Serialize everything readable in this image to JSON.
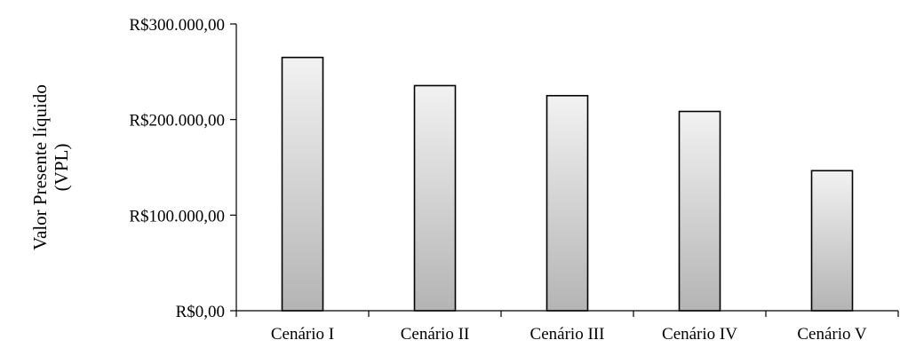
{
  "chart_data": {
    "type": "bar",
    "title": "",
    "xlabel": "",
    "ylabel_lines": [
      "Valor Presente líquido",
      "(VPL)"
    ],
    "categories": [
      "Cenário I",
      "Cenário II",
      "Cenário III",
      "Cenário IV",
      "Cenário V"
    ],
    "values": [
      265000,
      235500,
      225000,
      208500,
      146500
    ],
    "ylim": [
      0,
      300000
    ],
    "yticks": [
      0,
      100000,
      200000,
      300000
    ],
    "ytick_labels": [
      "R$0,00",
      "R$100.000,00",
      "R$200.000,00",
      "R$300.000,00"
    ],
    "grid": false,
    "legend": "none",
    "bar_gradient": [
      "#f2f2f2",
      "#b4b4b4"
    ],
    "bar_edge_color": "#000000"
  }
}
